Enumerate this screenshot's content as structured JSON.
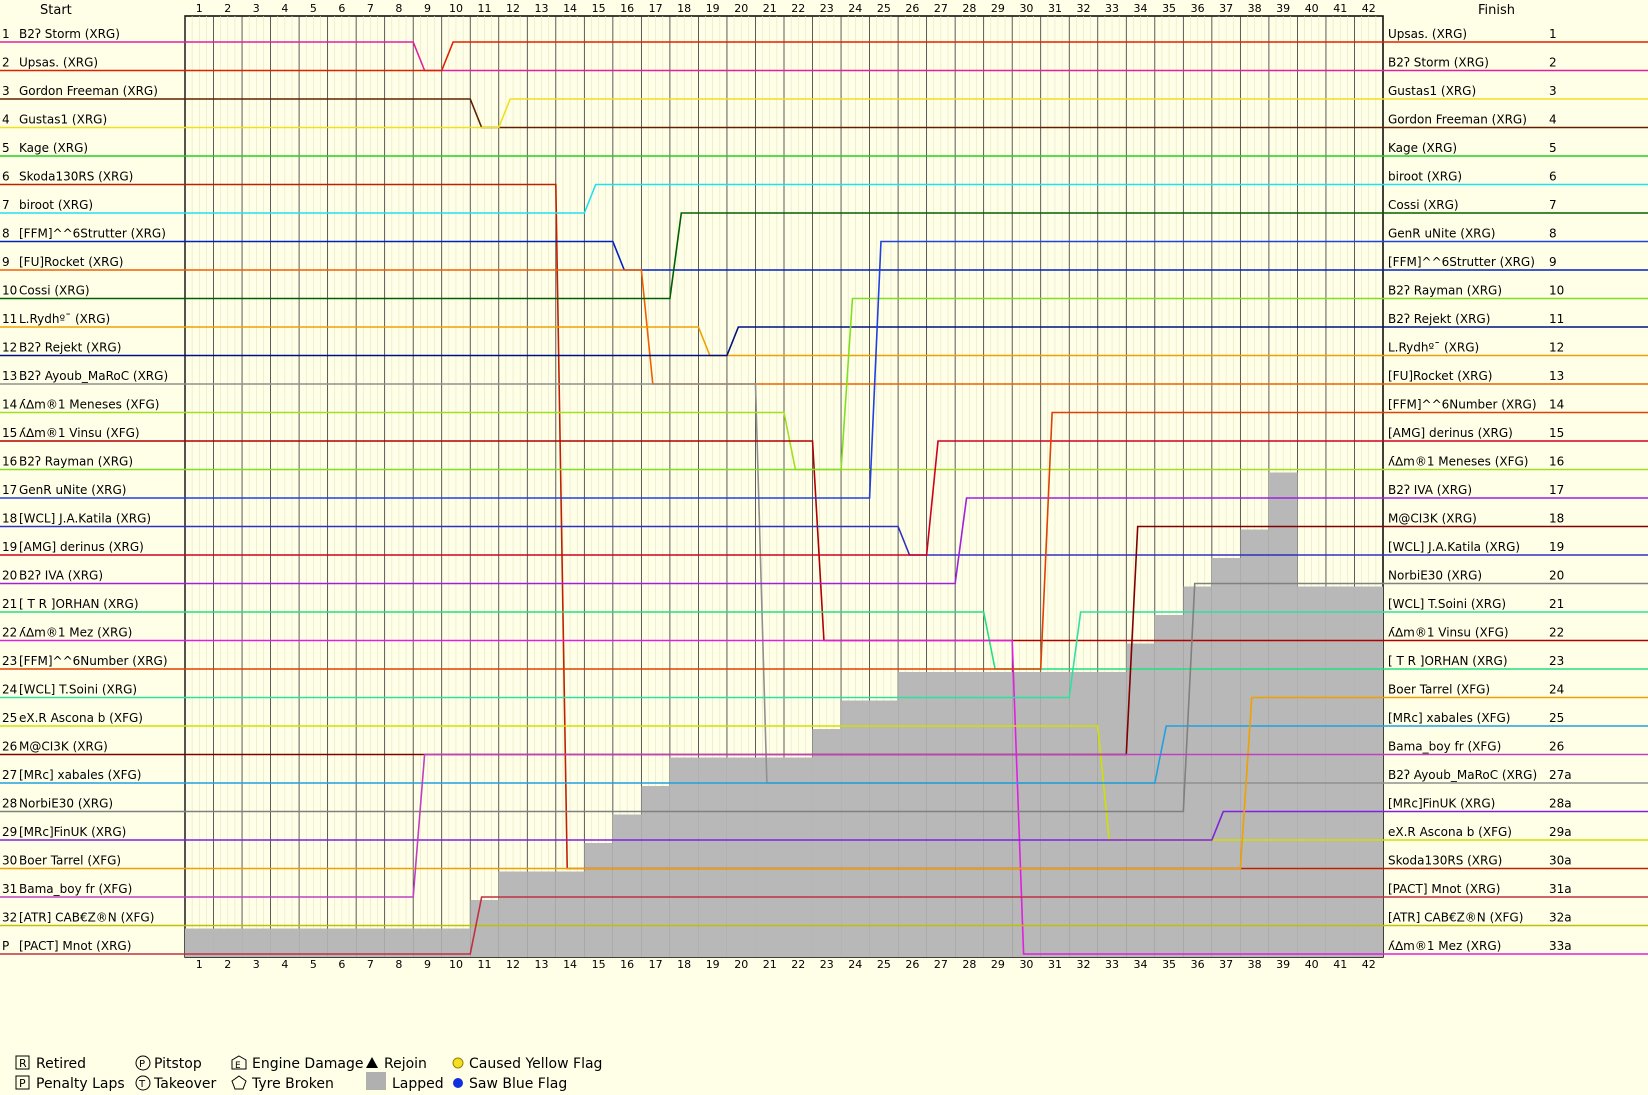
{
  "header": {
    "start": "Start",
    "finish": "Finish"
  },
  "chart_data": {
    "type": "line",
    "title": "",
    "laps": [
      1,
      2,
      3,
      4,
      5,
      6,
      7,
      8,
      9,
      10,
      11,
      12,
      13,
      14,
      15,
      16,
      17,
      18,
      19,
      20,
      21,
      22,
      23,
      24,
      25,
      26,
      27,
      28,
      29,
      30,
      31,
      32,
      33,
      34,
      35,
      36,
      37,
      38,
      39,
      40,
      41,
      42
    ],
    "start_positions": [
      "1",
      "2",
      "3",
      "4",
      "5",
      "6",
      "7",
      "8",
      "9",
      "10",
      "11",
      "12",
      "13",
      "14",
      "15",
      "16",
      "17",
      "18",
      "19",
      "20",
      "21",
      "22",
      "23",
      "24",
      "25",
      "26",
      "27",
      "28",
      "29",
      "30",
      "31",
      "32",
      "P"
    ],
    "finish_positions": [
      "1",
      "2",
      "3",
      "4",
      "5",
      "6",
      "7",
      "8",
      "9",
      "10",
      "11",
      "12",
      "13",
      "14",
      "15",
      "16",
      "17",
      "18",
      "19",
      "20",
      "21",
      "22",
      "23",
      "24",
      "25",
      "26",
      "27a",
      "28a",
      "29a",
      "30a",
      "31a",
      "32a",
      "33a"
    ],
    "start_grid": [
      "B2ʔ Storm (XRG)",
      "Upsas. (XRG)",
      "Gordon Freeman (XRG)",
      "Gustas1 (XRG)",
      "Kage (XRG)",
      "Skoda130RS (XRG)",
      "biroot (XRG)",
      "[FFM]^^6Strutter (XRG)",
      "[FU]Rocket (XRG)",
      "Cossi (XRG)",
      "L.Rydhº¯ (XRG)",
      "B2ʔ Rejekt (XRG)",
      "B2ʔ Ayoub_MaRoC (XRG)",
      "ʎ∆m®1 Meneses (XFG)",
      "ʎ∆m®1 Vinsu (XFG)",
      "B2ʔ Rayman (XRG)",
      "GenR uNite (XRG)",
      "[WCL] J.A.Katila (XRG)",
      "[AMG] derinus (XRG)",
      "B2ʔ IVA (XRG)",
      "[ T R ]ORHAN (XRG)",
      "ʎ∆m®1 Mez (XRG)",
      "[FFM]^^6Number (XRG)",
      "[WCL] T.Soini (XRG)",
      "eX.R Ascona b (XFG)",
      "M@CI3K (XRG)",
      "[MRc] xabales (XFG)",
      "NorbiE30 (XRG)",
      "[MRc]FinUK (XRG)",
      "Boer Tarrel (XFG)",
      "Bama_boy fr (XFG)",
      "[ATR] CAB€Z®N (XFG)",
      "[PACT] Mnot (XRG)"
    ],
    "finish_order": [
      "Upsas. (XRG)",
      "B2ʔ Storm (XRG)",
      "Gustas1 (XRG)",
      "Gordon Freeman (XRG)",
      "Kage (XRG)",
      "biroot (XRG)",
      "Cossi (XRG)",
      "GenR uNite (XRG)",
      "[FFM]^^6Strutter (XRG)",
      "B2ʔ Rayman (XRG)",
      "B2ʔ Rejekt (XRG)",
      "L.Rydhº¯ (XRG)",
      "[FU]Rocket (XRG)",
      "[FFM]^^6Number (XRG)",
      "[AMG] derinus (XRG)",
      "ʎ∆m®1 Meneses (XFG)",
      "B2ʔ IVA (XRG)",
      "M@CI3K (XRG)",
      "[WCL] J.A.Katila (XRG)",
      "NorbiE30 (XRG)",
      "[WCL] T.Soini (XRG)",
      "ʎ∆m®1 Vinsu (XFG)",
      "[ T R ]ORHAN (XRG)",
      "Boer Tarrel (XFG)",
      "[MRc] xabales (XFG)",
      "Bama_boy fr (XFG)",
      "B2ʔ Ayoub_MaRoC (XRG)",
      "[MRc]FinUK (XRG)",
      "eX.R Ascona b (XFG)",
      "Skoda130RS (XRG)",
      "[PACT] Mnot (XRG)",
      "[ATR] CAB€Z®N (XFG)",
      "ʎ∆m®1 Mez (XRG)"
    ],
    "colors": {
      "B2ʔ Storm (XRG)": "#e020a0",
      "Upsas. (XRG)": "#e02000",
      "Gordon Freeman (XRG)": "#602000",
      "Gustas1 (XRG)": "#f0e020",
      "Kage (XRG)": "#20d020",
      "Skoda130RS (XRG)": "#c02000",
      "biroot (XRG)": "#20e0f0",
      "[FFM]^^6Strutter (XRG)": "#0020c0",
      "[FU]Rocket (XRG)": "#f06000",
      "Cossi (XRG)": "#006000",
      "L.Rydhº¯ (XRG)": "#f0a000",
      "B2ʔ Rejekt (XRG)": "#001080",
      "B2ʔ Ayoub_MaRoC (XRG)": "#909090",
      "ʎ∆m®1 Meneses (XFG)": "#a0e020",
      "ʎ∆m®1 Vinsu (XFG)": "#b00000",
      "B2ʔ Rayman (XRG)": "#80e020",
      "GenR uNite (XRG)": "#2040e0",
      "[WCL] J.A.Katila (XRG)": "#3030c0",
      "[AMG] derinus (XRG)": "#d00020",
      "B2ʔ IVA (XRG)": "#a020e0",
      "[ T R ]ORHAN (XRG)": "#20e080",
      "ʎ∆m®1 Mez (XRG)": "#e020e0",
      "[FFM]^^6Number (XRG)": "#e04000",
      "[WCL] T.Soini (XRG)": "#30e0a0",
      "eX.R Ascona b (XFG)": "#d0e000",
      "M@CI3K (XRG)": "#800000",
      "[MRc] xabales (XFG)": "#20a0e0",
      "NorbiE30 (XRG)": "#808080",
      "[MRc]FinUK (XRG)": "#8020e0",
      "Boer Tarrel (XFG)": "#f0a000",
      "Bama_boy fr (XFG)": "#c040c0",
      "[ATR] CAB€Z®N (XFG)": "#c0c000",
      "[PACT] Mnot (XRG)": "#c03040"
    },
    "lapped_counts": [
      1,
      1,
      1,
      1,
      1,
      1,
      1,
      1,
      1,
      1,
      2,
      3,
      3,
      3,
      4,
      5,
      6,
      7,
      7,
      7,
      7,
      7,
      8,
      9,
      9,
      10,
      10,
      10,
      10,
      10,
      10,
      10,
      10,
      11,
      12,
      13,
      14,
      15,
      17,
      13,
      13,
      13
    ]
  },
  "legend": {
    "retired": "Retired",
    "penalty": "Penalty Laps",
    "pitstop": "Pitstop",
    "takeover": "Takeover",
    "engine": "Engine Damage",
    "tyre": "Tyre Broken",
    "rejoin": "Rejoin",
    "lapped": "Lapped",
    "yellow": "Caused Yellow Flag",
    "blue": "Saw Blue Flag",
    "icon_r": "R",
    "icon_p": "P",
    "icon_t": "T",
    "icon_e": "E"
  }
}
